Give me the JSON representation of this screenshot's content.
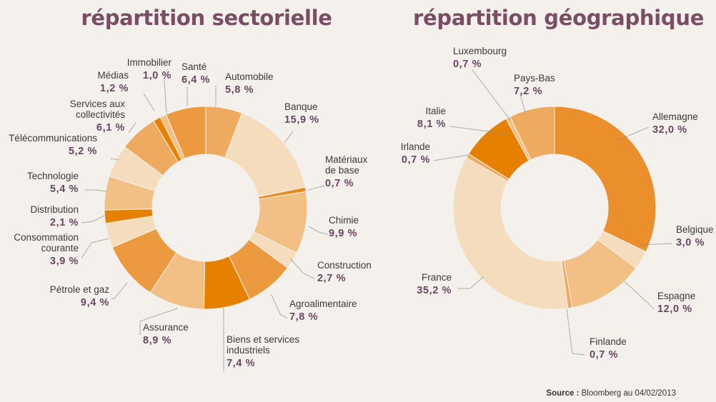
{
  "source": {
    "label": "Source :",
    "text": "Bloomberg au 04/02/2013"
  },
  "chart_data": [
    {
      "type": "pie",
      "title": "répartition sectorielle",
      "slices": [
        {
          "name": "Automobile",
          "value_label": "5,8 %",
          "value": 5.8,
          "color": "#eeab60"
        },
        {
          "name": "Banque",
          "value_label": "15,9 %",
          "value": 15.9,
          "color": "#f5dcbc"
        },
        {
          "name": "Matériaux\nde base",
          "value_label": "0,7 %",
          "value": 0.7,
          "color": "#e58a1f"
        },
        {
          "name": "Chimie",
          "value_label": "9,9 %",
          "value": 9.9,
          "color": "#f2bf84"
        },
        {
          "name": "Construction",
          "value_label": "2,7 %",
          "value": 2.7,
          "color": "#f5dcbc"
        },
        {
          "name": "Agroalimentaire",
          "value_label": "7,8 %",
          "value": 7.8,
          "color": "#eb9a40"
        },
        {
          "name": "Biens et services\nindustriels",
          "value_label": "7,4 %",
          "value": 7.4,
          "color": "#e58000"
        },
        {
          "name": "Assurance",
          "value_label": "8,9 %",
          "value": 8.9,
          "color": "#f2bf84"
        },
        {
          "name": "Pétrole et gaz",
          "value_label": "9,4 %",
          "value": 9.4,
          "color": "#eb9a40"
        },
        {
          "name": "Consommation\ncourante",
          "value_label": "3,9 %",
          "value": 3.9,
          "color": "#f5dcbc"
        },
        {
          "name": "Distribution",
          "value_label": "2,1 %",
          "value": 2.1,
          "color": "#e58000"
        },
        {
          "name": "Technologie",
          "value_label": "5,4 %",
          "value": 5.4,
          "color": "#f2bf84"
        },
        {
          "name": "Télécommunications",
          "value_label": "5,2 %",
          "value": 5.2,
          "color": "#f5dcbc"
        },
        {
          "name": "Services aux\ncollectivités",
          "value_label": "6,1 %",
          "value": 6.1,
          "color": "#eeab60"
        },
        {
          "name": "Médias",
          "value_label": "1,2 %",
          "value": 1.2,
          "color": "#e58000"
        },
        {
          "name": "Immobilier",
          "value_label": "1,0 %",
          "value": 1.0,
          "color": "#f2bf84"
        },
        {
          "name": "Santé",
          "value_label": "6,4 %",
          "value": 6.4,
          "color": "#eb9a40"
        }
      ]
    },
    {
      "type": "pie",
      "title": "répartition géographique",
      "slices": [
        {
          "name": "Allemagne",
          "value_label": "32,0 %",
          "value": 32.0,
          "color": "#eb8f2c"
        },
        {
          "name": "Belgique",
          "value_label": "3,0 %",
          "value": 3.0,
          "color": "#f5dcbc"
        },
        {
          "name": "Espagne",
          "value_label": "12,0 %",
          "value": 12.0,
          "color": "#f2bf84"
        },
        {
          "name": "Finlande",
          "value_label": "0,7 %",
          "value": 0.7,
          "color": "#eeab60"
        },
        {
          "name": "France",
          "value_label": "35,2 %",
          "value": 35.2,
          "color": "#f5dcbc"
        },
        {
          "name": "Irlande",
          "value_label": "0,7 %",
          "value": 0.7,
          "color": "#eeab60"
        },
        {
          "name": "Italie",
          "value_label": "8,1 %",
          "value": 8.1,
          "color": "#e58000"
        },
        {
          "name": "Luxembourg",
          "value_label": "0,7 %",
          "value": 0.7,
          "color": "#f2bf84"
        },
        {
          "name": "Pays-Bas",
          "value_label": "7,2 %",
          "value": 7.2,
          "color": "#eeab60"
        }
      ]
    }
  ]
}
